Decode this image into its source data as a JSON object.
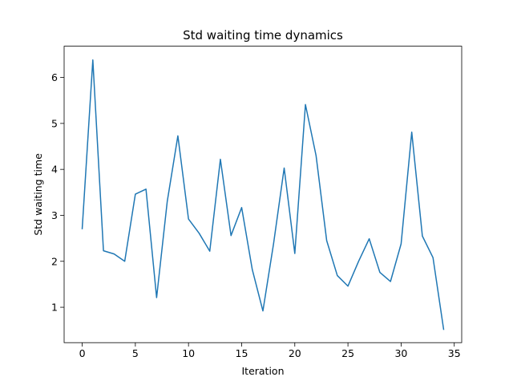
{
  "chart_data": {
    "type": "line",
    "title": "Std waiting time dynamics",
    "xlabel": "Iteration",
    "ylabel": "Std waiting time",
    "xlim": [
      -1.7,
      35.7
    ],
    "ylim": [
      0.23,
      6.68
    ],
    "xticks": [
      0,
      5,
      10,
      15,
      20,
      25,
      30,
      35
    ],
    "yticks": [
      1,
      2,
      3,
      4,
      5,
      6
    ],
    "grid": false,
    "legend": "none",
    "series": [
      {
        "color": "#1f77b4",
        "x": [
          0,
          1,
          2,
          3,
          4,
          5,
          6,
          7,
          8,
          9,
          10,
          11,
          12,
          13,
          14,
          15,
          16,
          17,
          18,
          19,
          20,
          21,
          22,
          23,
          24,
          25,
          26,
          27,
          28,
          29,
          30,
          31,
          32,
          33,
          34
        ],
        "values": [
          2.71,
          6.38,
          2.23,
          2.16,
          2.0,
          3.46,
          3.57,
          1.21,
          3.3,
          4.73,
          2.92,
          2.61,
          2.22,
          4.22,
          2.56,
          3.17,
          1.82,
          0.92,
          2.38,
          4.03,
          2.17,
          5.41,
          4.3,
          2.45,
          1.69,
          1.46,
          2.0,
          2.49,
          1.76,
          1.56,
          2.38,
          4.81,
          2.55,
          2.08,
          0.52
        ]
      }
    ]
  }
}
